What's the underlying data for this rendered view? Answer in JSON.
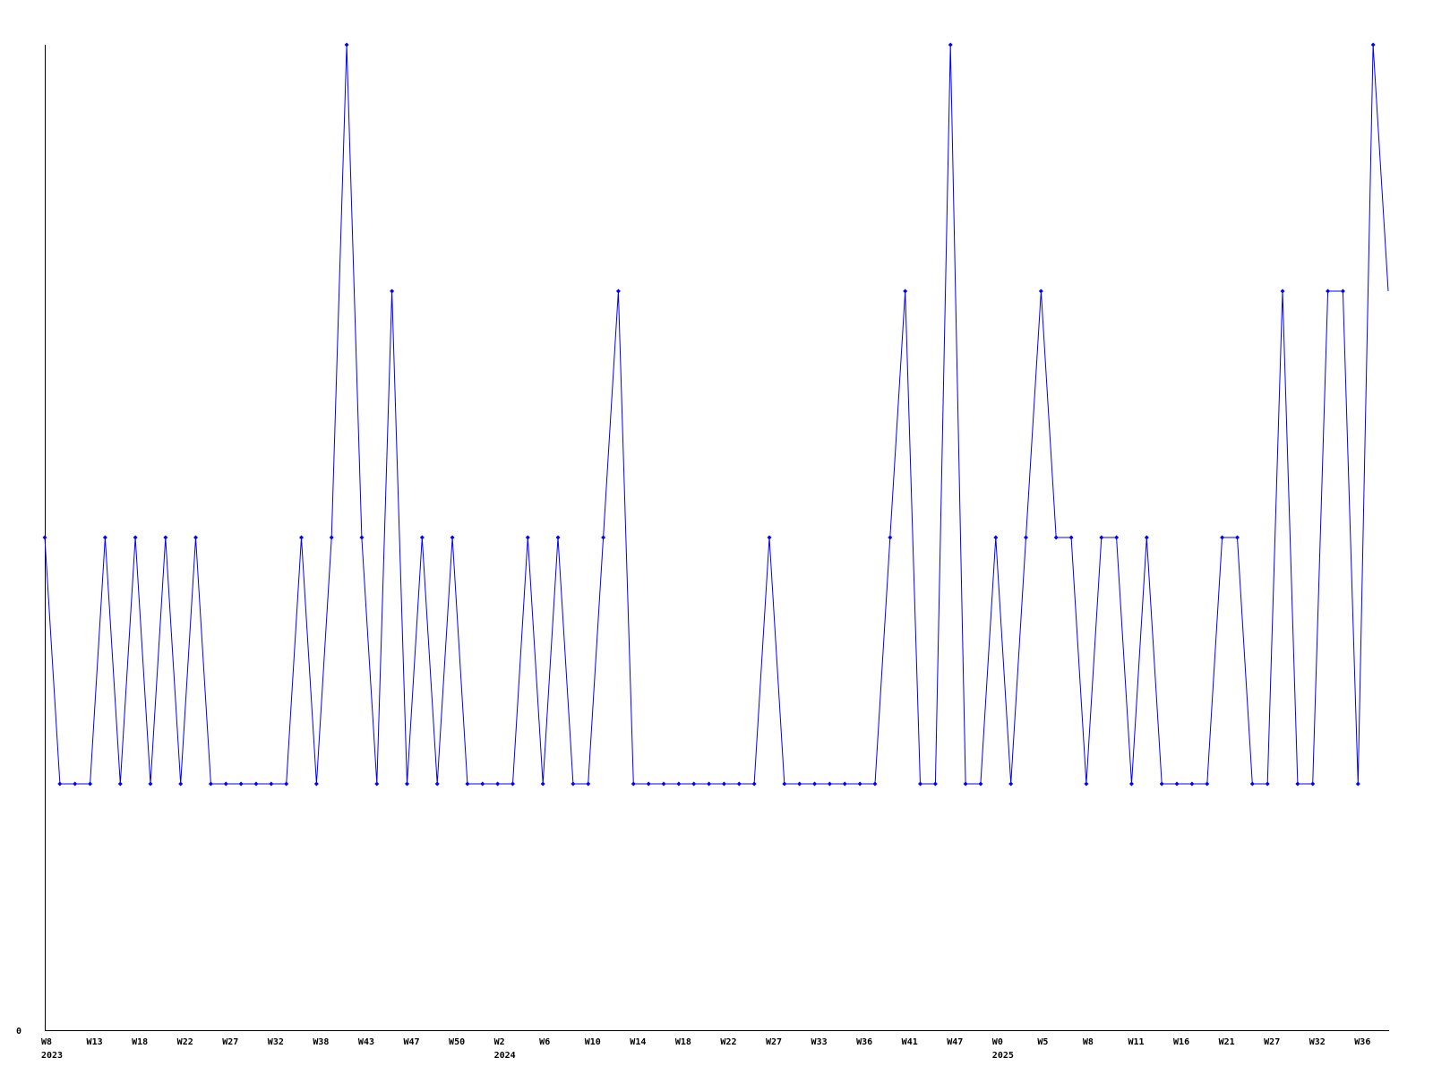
{
  "chart_data": {
    "type": "line",
    "title": "",
    "xlabel": "",
    "ylabel": "",
    "ylim": [
      0,
      4
    ],
    "y_tick_labels": [
      "0"
    ],
    "grid": false,
    "line_color": "#0000ff",
    "axis_color": "#000000",
    "values": [
      2,
      1,
      1,
      1,
      2,
      1,
      2,
      1,
      2,
      1,
      2,
      1,
      1,
      1,
      1,
      1,
      1,
      2,
      1,
      2,
      4,
      2,
      1,
      3,
      1,
      2,
      1,
      2,
      1,
      1,
      1,
      1,
      2,
      1,
      2,
      1,
      1,
      2,
      3,
      1,
      1,
      1,
      1,
      1,
      1,
      1,
      1,
      1,
      2,
      1,
      1,
      1,
      1,
      1,
      1,
      1,
      2,
      3,
      1,
      1,
      4,
      1,
      1,
      2,
      1,
      2,
      3,
      2,
      2,
      1,
      2,
      2,
      1,
      2,
      1,
      1,
      1,
      1,
      2,
      2,
      1,
      1,
      3,
      1,
      1,
      3,
      3,
      1,
      4,
      3
    ],
    "x_tick_labels": [
      {
        "index": 0,
        "label": "W8",
        "year": "2023"
      },
      {
        "index": 3,
        "label": "W13"
      },
      {
        "index": 6,
        "label": "W18"
      },
      {
        "index": 9,
        "label": "W22"
      },
      {
        "index": 12,
        "label": "W27"
      },
      {
        "index": 15,
        "label": "W32"
      },
      {
        "index": 18,
        "label": "W38"
      },
      {
        "index": 21,
        "label": "W43"
      },
      {
        "index": 24,
        "label": "W47"
      },
      {
        "index": 27,
        "label": "W50"
      },
      {
        "index": 30,
        "label": "W2",
        "year": "2024"
      },
      {
        "index": 33,
        "label": "W6"
      },
      {
        "index": 36,
        "label": "W10"
      },
      {
        "index": 39,
        "label": "W14"
      },
      {
        "index": 42,
        "label": "W18"
      },
      {
        "index": 45,
        "label": "W22"
      },
      {
        "index": 48,
        "label": "W27"
      },
      {
        "index": 51,
        "label": "W33"
      },
      {
        "index": 54,
        "label": "W36"
      },
      {
        "index": 57,
        "label": "W41"
      },
      {
        "index": 60,
        "label": "W47"
      },
      {
        "index": 63,
        "label": "W0",
        "year": "2025"
      },
      {
        "index": 66,
        "label": "W5"
      },
      {
        "index": 69,
        "label": "W8"
      },
      {
        "index": 72,
        "label": "W11"
      },
      {
        "index": 75,
        "label": "W16"
      },
      {
        "index": 78,
        "label": "W21"
      },
      {
        "index": 81,
        "label": "W27"
      },
      {
        "index": 84,
        "label": "W32"
      },
      {
        "index": 87,
        "label": "W36"
      }
    ]
  }
}
